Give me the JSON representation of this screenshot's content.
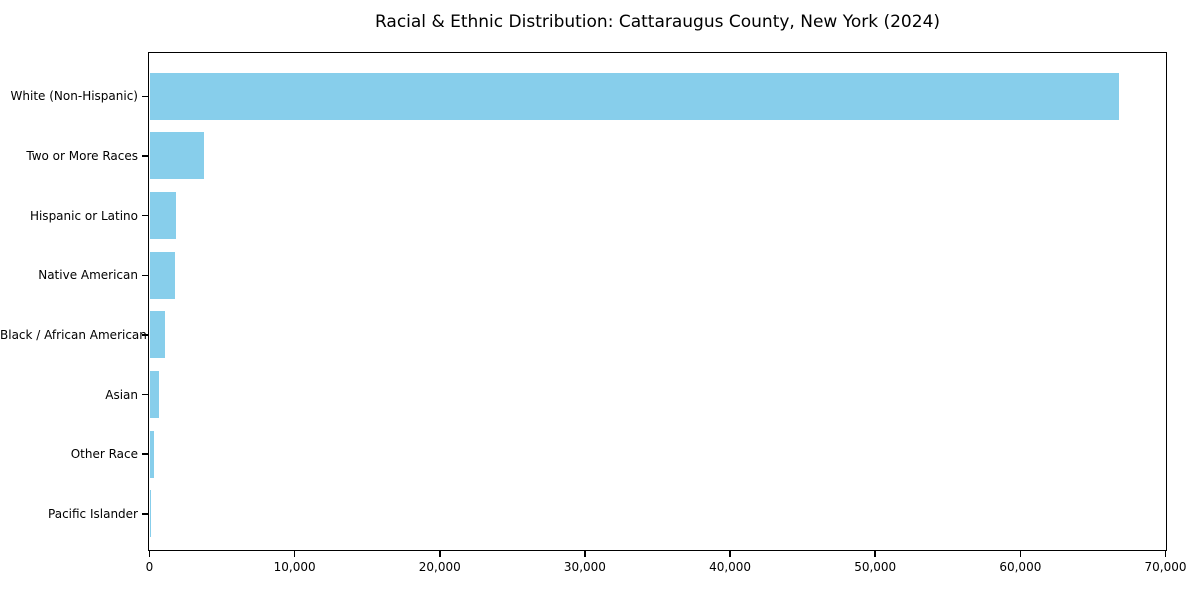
{
  "title": "Racial & Ethnic Distribution: Cattaraugus County, New York (2024)",
  "chart_data": {
    "type": "bar",
    "orientation": "horizontal",
    "title": "Racial & Ethnic Distribution: Cattaraugus County, New York (2024)",
    "xlabel": "",
    "ylabel": "",
    "categories": [
      "White (Non-Hispanic)",
      "Two or More Races",
      "Hispanic or Latino",
      "Native American",
      "Black / African American",
      "Asian",
      "Other Race",
      "Pacific Islander"
    ],
    "values": [
      66800,
      3730,
      1820,
      1780,
      1050,
      640,
      330,
      20
    ],
    "xlim": [
      0,
      70000
    ],
    "xticks": [
      0,
      10000,
      20000,
      30000,
      40000,
      50000,
      60000,
      70000
    ],
    "xtick_labels": [
      "0",
      "10,000",
      "20,000",
      "30,000",
      "40,000",
      "50,000",
      "60,000",
      "70,000"
    ],
    "grid": false,
    "legend": null,
    "bar_color": "#87CEEB",
    "spine_color": "#000000",
    "background_color": "#FFFFFF",
    "text_color": "#000000"
  }
}
